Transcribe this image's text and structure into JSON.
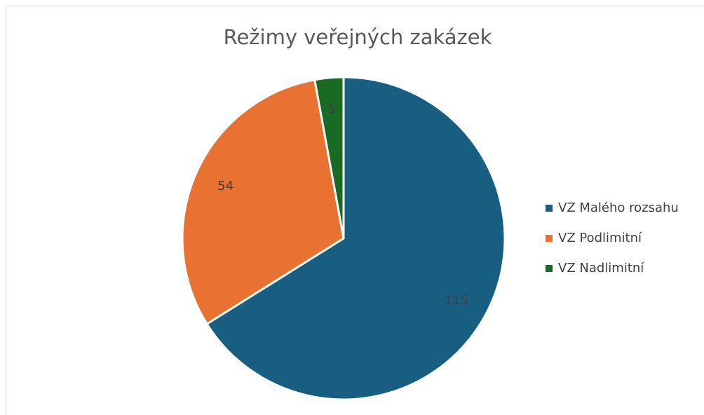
{
  "chart_data": {
    "type": "pie",
    "title": "Režimy veřejných zakázek",
    "categories": [
      "VZ Malého rozsahu",
      "VZ Podlimitní",
      "VZ Nadlimitní"
    ],
    "values": [
      115,
      54,
      5
    ],
    "colors": [
      "#175e80",
      "#e97132",
      "#196b24"
    ],
    "legend": "right"
  }
}
